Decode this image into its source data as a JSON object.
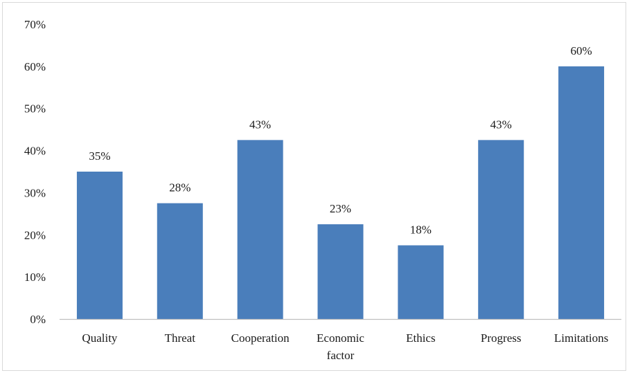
{
  "chart_data": {
    "type": "bar",
    "categories": [
      "Quality",
      "Threat",
      "Cooperation",
      "Economic factor",
      "Ethics",
      "Progress",
      "Limitations"
    ],
    "category_lines": [
      [
        "Quality"
      ],
      [
        "Threat"
      ],
      [
        "Cooperation"
      ],
      [
        "Economic",
        "factor"
      ],
      [
        "Ethics"
      ],
      [
        "Progress"
      ],
      [
        "Limitations"
      ]
    ],
    "values": [
      35,
      27.5,
      42.5,
      22.5,
      17.5,
      42.5,
      60
    ],
    "data_labels": [
      "35%",
      "28%",
      "43%",
      "23%",
      "18%",
      "43%",
      "60%"
    ],
    "ylim": [
      0,
      70
    ],
    "yticks": [
      0,
      10,
      20,
      30,
      40,
      50,
      60,
      70
    ],
    "ytick_labels": [
      "0%",
      "10%",
      "20%",
      "30%",
      "40%",
      "50%",
      "60%",
      "70%"
    ],
    "grid": false,
    "bar_color": "#4a7ebb",
    "axis_color": "#bfbfbf"
  }
}
